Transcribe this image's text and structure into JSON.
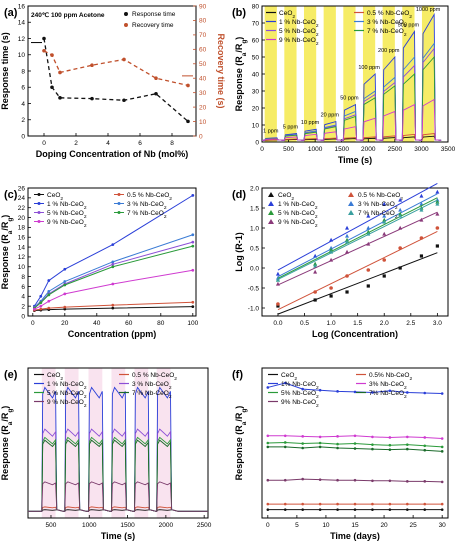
{
  "chart_data": [
    {
      "panel": "(a)",
      "type": "line",
      "title": "",
      "annotation": "240℃ 100 ppm Acetone",
      "xlabel": "Doping Concentration of Nb (mol%)",
      "ylabel": "Response time (s)",
      "y2label": "Recovery time (s)",
      "xlim": [
        -1,
        9.5
      ],
      "ylim": [
        0,
        16
      ],
      "y2lim": [
        0,
        90
      ],
      "xticks": [
        "0",
        "2",
        "4",
        "6",
        "8"
      ],
      "yticks": [
        "0",
        "2",
        "4",
        "6",
        "8",
        "10",
        "12",
        "14",
        "16"
      ],
      "y2ticks": [
        "0",
        "10",
        "20",
        "30",
        "40",
        "50",
        "60",
        "70",
        "80",
        "90"
      ],
      "x": [
        0,
        0.5,
        1,
        3,
        5,
        7,
        9
      ],
      "series": [
        {
          "name": "Response time",
          "color": "#111111",
          "values": [
            12,
            6,
            4.7,
            4.6,
            4.4,
            5.2,
            1.8
          ]
        },
        {
          "name": "Recovery time",
          "color": "#c0502c",
          "axis": "right",
          "values": [
            59,
            56,
            44,
            49,
            53,
            40,
            35
          ]
        }
      ],
      "legend": "top-right"
    },
    {
      "panel": "(b)",
      "type": "line",
      "xlabel": "Time (s)",
      "ylabel": "Response (Ra/Rg)",
      "xlim": [
        0,
        3500
      ],
      "ylim": [
        0,
        80
      ],
      "xticks": [
        "0",
        "500",
        "1000",
        "1500",
        "2000",
        "2500",
        "3000",
        "3500"
      ],
      "yticks": [
        "0",
        "10",
        "20",
        "30",
        "40",
        "50",
        "60",
        "70",
        "80"
      ],
      "concentration_labels": [
        "1 ppm",
        "5 ppm",
        "10 ppm",
        "20 ppm",
        "50 ppm",
        "100 ppm",
        "200 ppm",
        "500 ppm",
        "1000 ppm"
      ],
      "pulse_starts": [
        50,
        420,
        790,
        1160,
        1530,
        1900,
        2270,
        2640,
        3010
      ],
      "pulse_width": 230,
      "series": [
        {
          "name": "CeO2",
          "color": "#111111",
          "values": [
            1.2,
            1.5,
            1.6,
            1.8,
            2.0,
            2.2,
            2.6,
            3.0,
            3.4
          ]
        },
        {
          "name": "0.5 % Nb-CeO2",
          "color": "#d0533a",
          "values": [
            1.3,
            1.8,
            2.0,
            2.3,
            2.6,
            3.0,
            3.6,
            4.5,
            5.0
          ]
        },
        {
          "name": "1 % Nb-CeO2",
          "color": "#2a3fd8",
          "values": [
            2.5,
            5.0,
            7.5,
            12,
            22,
            40,
            50,
            65,
            75
          ]
        },
        {
          "name": "3 % Nb-CeO2",
          "color": "#3a7bd5",
          "values": [
            2.3,
            4.5,
            6.5,
            10,
            18,
            30,
            38,
            50,
            58
          ]
        },
        {
          "name": "5 % Nb-CeO2",
          "color": "#8c4fd6",
          "values": [
            2.2,
            4.2,
            6.0,
            9.5,
            16,
            28,
            35,
            45,
            55
          ]
        },
        {
          "name": "7 % Nb-CeO2",
          "color": "#2a9a3a",
          "values": [
            2.0,
            4.0,
            5.8,
            9.0,
            15,
            26,
            33,
            40,
            50
          ]
        },
        {
          "name": "9 % Nb-CeO2",
          "color": "#cf3bd0",
          "values": [
            1.8,
            3.0,
            4.5,
            6.0,
            9,
            14,
            18,
            22,
            25
          ]
        }
      ]
    },
    {
      "panel": "(c)",
      "type": "line",
      "xlabel": "Concentration (ppm)",
      "ylabel": "Response (Ra/Rg)",
      "xlim": [
        -3,
        102
      ],
      "ylim": [
        0,
        26
      ],
      "xticks": [
        "0",
        "20",
        "40",
        "60",
        "80",
        "100"
      ],
      "yticks": [
        "0",
        "2",
        "4",
        "6",
        "8",
        "10",
        "12",
        "14",
        "16",
        "18",
        "20",
        "22",
        "24",
        "26"
      ],
      "x": [
        1,
        5,
        10,
        20,
        50,
        100
      ],
      "series": [
        {
          "name": "CeO2",
          "color": "#111111",
          "values": [
            1.1,
            1.2,
            1.3,
            1.4,
            1.6,
            1.9
          ]
        },
        {
          "name": "0.5 % Nb-CeO2",
          "color": "#d0533a",
          "values": [
            1.2,
            1.4,
            1.6,
            1.8,
            2.2,
            2.8
          ]
        },
        {
          "name": "1 % Nb-CeO2",
          "color": "#2a3fd8",
          "values": [
            2.0,
            4.0,
            7.2,
            9.5,
            14.5,
            24.5
          ]
        },
        {
          "name": "3 % Nb-CeO2",
          "color": "#3a7bd5",
          "values": [
            1.8,
            3.0,
            5.0,
            7.0,
            11.0,
            16.5
          ]
        },
        {
          "name": "5 % Nb-CeO2",
          "color": "#8c4fd6",
          "values": [
            1.7,
            2.8,
            4.5,
            6.5,
            10.5,
            15.0
          ]
        },
        {
          "name": "7 % Nb-CeO2",
          "color": "#2a9a3a",
          "values": [
            1.6,
            2.7,
            4.3,
            6.3,
            10.0,
            14.2
          ]
        },
        {
          "name": "9 % Nb-CeO2",
          "color": "#cf3bd0",
          "values": [
            1.4,
            2.0,
            3.0,
            4.5,
            6.5,
            9.3
          ]
        }
      ]
    },
    {
      "panel": "(d)",
      "type": "scatter",
      "xlabel": "Log (Concentration)",
      "ylabel": "Log (R-1)",
      "xlim": [
        -0.3,
        3.2
      ],
      "ylim": [
        -1.2,
        2.0
      ],
      "xticks": [
        "0.0",
        "0.5",
        "1.0",
        "1.5",
        "2.0",
        "2.5",
        "3.0"
      ],
      "yticks": [
        "-1.0",
        "-0.5",
        "0.0",
        "0.5",
        "1.0",
        "1.5",
        "2.0"
      ],
      "x": [
        0,
        0.7,
        1,
        1.3,
        1.7,
        2,
        2.3,
        2.7,
        3
      ],
      "series": [
        {
          "name": "CeO2",
          "color": "#111111",
          "marker": "square",
          "values": [
            -0.95,
            -0.8,
            -0.7,
            -0.6,
            -0.45,
            -0.2,
            0.0,
            0.3,
            0.55
          ]
        },
        {
          "name": "0.5 % Nb-CeO2",
          "color": "#d0533a",
          "marker": "circle",
          "values": [
            -0.9,
            -0.6,
            -0.5,
            -0.2,
            -0.05,
            0.2,
            0.5,
            0.75,
            1.0
          ]
        },
        {
          "name": "1 % Nb-CeO2",
          "color": "#2a3fd8",
          "marker": "triangle",
          "values": [
            -0.15,
            0.3,
            0.7,
            1.0,
            1.3,
            1.6,
            1.7,
            1.8,
            1.9
          ]
        },
        {
          "name": "3 % Nb-CeO2",
          "color": "#3a7bd5",
          "marker": "triangle-down",
          "values": [
            -0.25,
            0.1,
            0.5,
            0.8,
            1.0,
            1.3,
            1.45,
            1.6,
            1.7
          ]
        },
        {
          "name": "5 % Nb-CeO2",
          "color": "#2a9a3a",
          "marker": "triangle-down",
          "values": [
            -0.3,
            0.1,
            0.45,
            0.7,
            0.9,
            1.2,
            1.35,
            1.5,
            1.65
          ]
        },
        {
          "name": "7 % Nb-CeO2",
          "color": "#3aa0a0",
          "marker": "triangle-left",
          "values": [
            -0.3,
            0.05,
            0.4,
            0.65,
            0.85,
            1.15,
            1.3,
            1.45,
            1.6
          ]
        },
        {
          "name": "9 % Nb-CeO2",
          "color": "#8a3a7a",
          "marker": "triangle-right",
          "values": [
            -0.4,
            -0.1,
            0.2,
            0.4,
            0.6,
            0.85,
            1.0,
            1.2,
            1.35
          ]
        }
      ],
      "fit_lines": true
    },
    {
      "panel": "(e)",
      "type": "line",
      "xlabel": "Time (s)",
      "ylabel": "Response (Ra/Rg)",
      "xlim": [
        200,
        2550
      ],
      "ylim": [
        0,
        27
      ],
      "xticks": [
        "500",
        "1000",
        "1500",
        "2000",
        "2500"
      ],
      "pulse_starts": [
        380,
        680,
        990,
        1290,
        1590,
        1880
      ],
      "pulse_width": 180,
      "series": [
        {
          "name": "CeO2",
          "color": "#111111",
          "values": [
            1.5
          ]
        },
        {
          "name": "0.5 % Nb-CeO2",
          "color": "#d0533a",
          "values": [
            2.0
          ]
        },
        {
          "name": "1 % Nb-CeO2",
          "color": "#2a3fd8",
          "values": [
            23.5
          ]
        },
        {
          "name": "3 % Nb-CeO2",
          "color": "#8c4fd6",
          "values": [
            16.0
          ]
        },
        {
          "name": "5 % Nb-CeO2",
          "color": "#2a9a3a",
          "values": [
            14.5
          ]
        },
        {
          "name": "7 % Nb-CeO2",
          "color": "#1a6a2a",
          "values": [
            14.0
          ]
        },
        {
          "name": "9 % Nb-CeO2",
          "color": "#7a3a6a",
          "values": [
            6.5
          ]
        }
      ]
    },
    {
      "panel": "(f)",
      "type": "line",
      "xlabel": "Time (days)",
      "ylabel": "Response (Ra/Rg)",
      "xlim": [
        -1,
        31
      ],
      "ylim": [
        0,
        27
      ],
      "xticks": [
        "0",
        "5",
        "10",
        "15",
        "20",
        "25",
        "30"
      ],
      "x": [
        0,
        3,
        6,
        9,
        12,
        15,
        18,
        21,
        24,
        27,
        30
      ],
      "series": [
        {
          "name": "CeO2",
          "color": "#111111",
          "values": [
            1.5,
            1.5,
            1.5,
            1.5,
            1.5,
            1.5,
            1.5,
            1.5,
            1.5,
            1.5,
            1.5
          ]
        },
        {
          "name": "0.5% Nb-CeO2",
          "color": "#d0533a",
          "values": [
            2.5,
            2.5,
            2.5,
            2.5,
            2.5,
            2.5,
            2.5,
            2.5,
            2.5,
            2.5,
            2.5
          ]
        },
        {
          "name": "1% Nb-CeO2",
          "color": "#2a3fd8",
          "values": [
            23.5,
            24.3,
            23.2,
            23.0,
            22.8,
            22.7,
            22.6,
            22.9,
            22.6,
            22.5,
            22.4
          ]
        },
        {
          "name": "3% Nb-CeO2",
          "color": "#cf3bd0",
          "values": [
            14.8,
            14.8,
            14.7,
            14.6,
            14.7,
            14.8,
            14.6,
            14.5,
            14.6,
            14.5,
            14.3
          ]
        },
        {
          "name": "5% Nb-CeO2",
          "color": "#2a9a3a",
          "values": [
            13.5,
            13.6,
            13.4,
            13.5,
            13.3,
            13.4,
            13.2,
            13.1,
            13.2,
            13.0,
            12.8
          ]
        },
        {
          "name": "7% Nb-CeO2",
          "color": "#1a6a2a",
          "values": [
            12.8,
            12.8,
            12.6,
            12.8,
            12.6,
            12.5,
            12.4,
            12.3,
            12.4,
            12.2,
            12.0
          ]
        },
        {
          "name": "9% Nb-CeO2",
          "color": "#7a3a6a",
          "values": [
            6.8,
            6.8,
            7.0,
            6.9,
            6.8,
            6.8,
            6.7,
            6.7,
            6.6,
            6.6,
            6.5
          ]
        }
      ]
    }
  ]
}
